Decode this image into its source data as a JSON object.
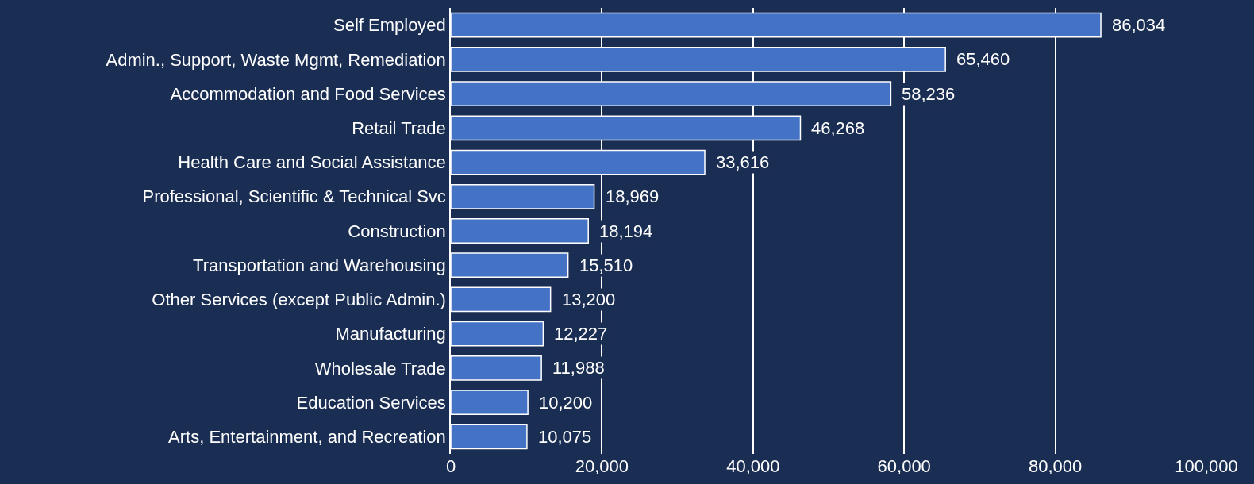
{
  "chart_data": {
    "type": "bar",
    "orientation": "horizontal",
    "categories": [
      "Self Employed",
      "Admin., Support, Waste Mgmt, Remediation",
      "Accommodation and Food Services",
      "Retail Trade",
      "Health Care and Social Assistance",
      "Professional, Scientific & Technical Svc",
      "Construction",
      "Transportation and Warehousing",
      "Other Services (except Public Admin.)",
      "Manufacturing",
      "Wholesale Trade",
      "Education Services",
      "Arts, Entertainment, and Recreation"
    ],
    "values": [
      86034,
      65460,
      58236,
      46268,
      33616,
      18969,
      18194,
      15510,
      13200,
      12227,
      11988,
      10200,
      10075
    ],
    "value_labels": [
      "86,034",
      "65,460",
      "58,236",
      "46,268",
      "33,616",
      "18,969",
      "18,194",
      "15,510",
      "13,200",
      "12,227",
      "11,988",
      "10,200",
      "10,075"
    ],
    "color": "#4472c4",
    "xlim": [
      0,
      100000
    ],
    "xticks": [
      {
        "value": 0,
        "label": "0"
      },
      {
        "value": 20000,
        "label": "20,000"
      },
      {
        "value": 40000,
        "label": "40,000"
      },
      {
        "value": 60000,
        "label": "60,000"
      },
      {
        "value": 80000,
        "label": "80,000"
      },
      {
        "value": 100000,
        "label": "100,000"
      }
    ],
    "grid": "x",
    "legend": false
  }
}
